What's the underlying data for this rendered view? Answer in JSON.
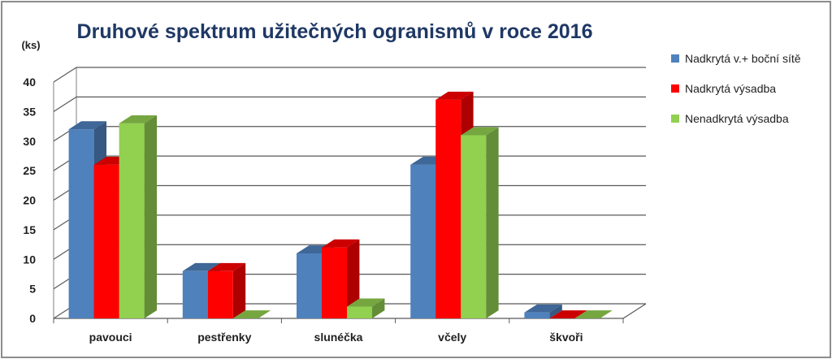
{
  "chart_data": {
    "type": "bar",
    "title": "Druhové spektrum užitečných ogranismů v roce 2016",
    "ylabel": "(ks)",
    "xlabel": "",
    "ylim": [
      0,
      40
    ],
    "yticks": [
      0,
      5,
      10,
      15,
      20,
      25,
      30,
      35,
      40
    ],
    "grid": true,
    "legend_position": "right",
    "categories": [
      "pavouci",
      "pestřenky",
      "slunéčka",
      "včely",
      "škvoři"
    ],
    "series": [
      {
        "name": "Nadkrytá v.+ boční sítě",
        "color": "#4f81bd",
        "values": [
          32,
          8,
          11,
          26,
          1
        ]
      },
      {
        "name": "Nadkrytá výsadba",
        "color": "#ff0000",
        "values": [
          26,
          8,
          12,
          37,
          0
        ]
      },
      {
        "name": "Nenadkrytá výsadba",
        "color": "#92d050",
        "values": [
          33,
          0,
          2,
          31,
          0
        ]
      }
    ]
  }
}
